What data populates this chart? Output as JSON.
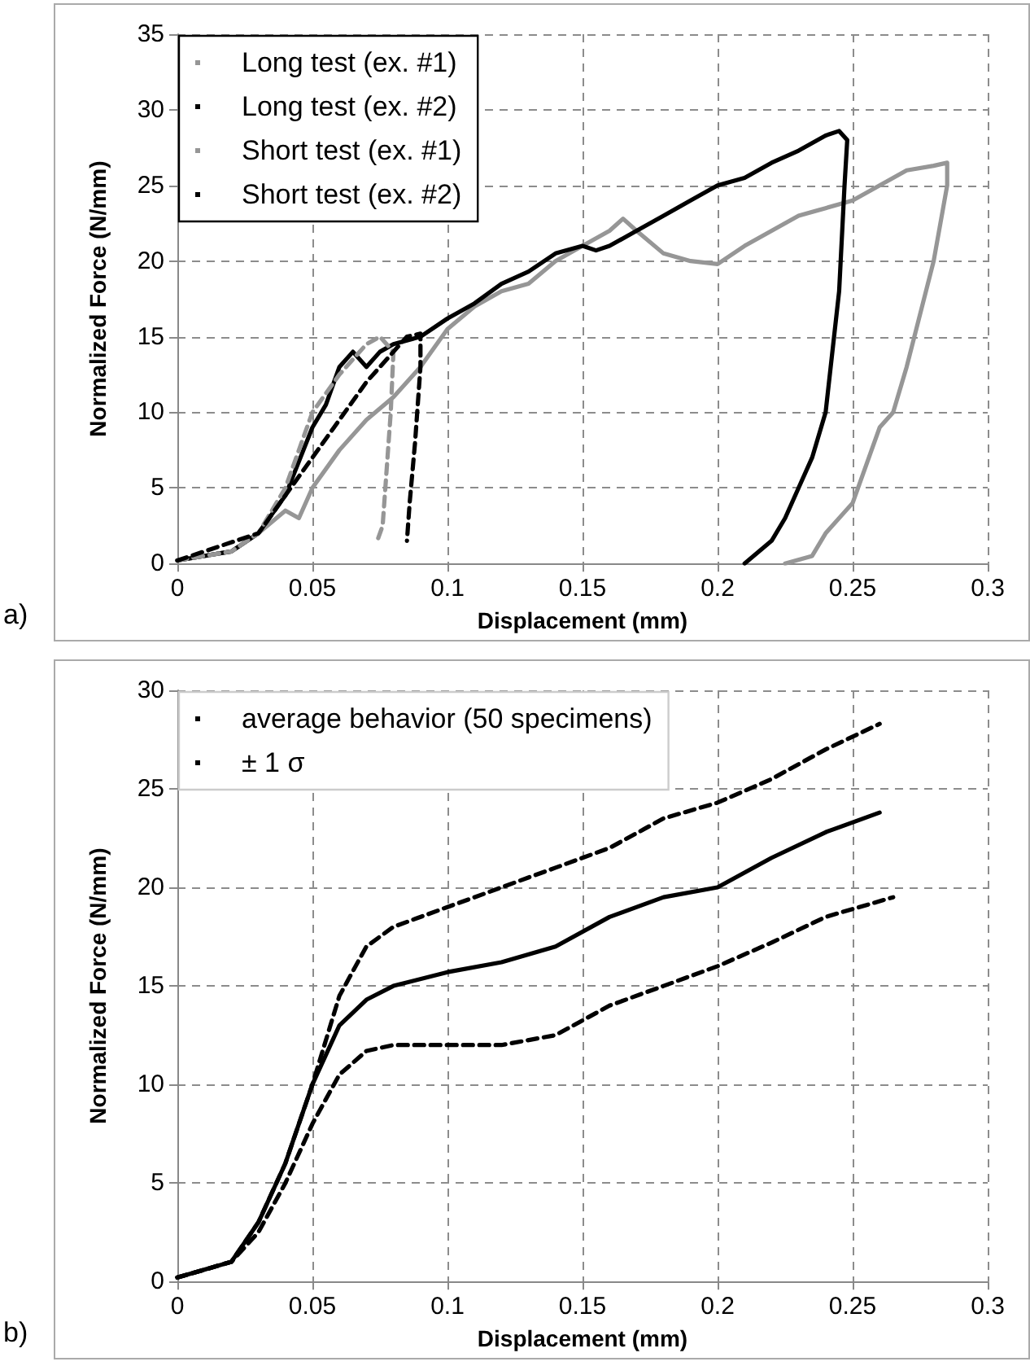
{
  "chart_data": [
    {
      "type": "line",
      "xlabel": "Displacement (mm)",
      "ylabel": "Normalized Force (N/mm)",
      "annotations": [
        "a)"
      ],
      "xlim": [
        0,
        0.3
      ],
      "xticks": [
        0,
        0.05,
        0.1,
        0.15,
        0.2,
        0.25,
        0.3
      ],
      "ylim": [
        0,
        35
      ],
      "yticks": [
        0,
        5,
        10,
        15,
        20,
        25,
        30,
        35
      ],
      "grid": true,
      "legend": "top left",
      "marker": "none",
      "series": [
        {
          "name": "Long test (ex. #1)",
          "color": "#969696",
          "line_style": "solid",
          "x": [
            0,
            0.02,
            0.03,
            0.04,
            0.045,
            0.05,
            0.06,
            0.07,
            0.08,
            0.09,
            0.1,
            0.11,
            0.12,
            0.13,
            0.14,
            0.15,
            0.16,
            0.165,
            0.17,
            0.18,
            0.19,
            0.2,
            0.21,
            0.22,
            0.23,
            0.24,
            0.25,
            0.26,
            0.27,
            0.28,
            0.285,
            0.285,
            0.28,
            0.27,
            0.265,
            0.26,
            0.25,
            0.24,
            0.235,
            0.225
          ],
          "values": [
            0.2,
            0.8,
            2,
            3.5,
            3,
            5,
            7.5,
            9.5,
            11,
            13,
            15.5,
            17,
            18,
            18.5,
            20,
            21,
            22,
            22.8,
            22,
            20.5,
            20,
            19.8,
            21,
            22,
            23,
            23.5,
            24,
            25,
            26,
            26.3,
            26.5,
            25,
            20,
            13,
            10,
            9,
            4,
            2,
            0.5,
            0
          ]
        },
        {
          "name": "Long test (ex. #2)",
          "color": "#000000",
          "line_style": "solid",
          "x": [
            0,
            0.02,
            0.03,
            0.04,
            0.05,
            0.055,
            0.06,
            0.065,
            0.07,
            0.075,
            0.08,
            0.09,
            0.1,
            0.11,
            0.12,
            0.13,
            0.14,
            0.15,
            0.155,
            0.16,
            0.17,
            0.18,
            0.19,
            0.2,
            0.21,
            0.22,
            0.23,
            0.24,
            0.245,
            0.248,
            0.247,
            0.245,
            0.24,
            0.235,
            0.23,
            0.225,
            0.22,
            0.21
          ],
          "values": [
            0.2,
            0.8,
            2,
            4.5,
            9,
            10.5,
            13,
            14,
            13,
            14,
            14.5,
            15,
            16.2,
            17.2,
            18.5,
            19.3,
            20.5,
            21,
            20.7,
            21,
            22,
            23,
            24,
            25,
            25.5,
            26.5,
            27.3,
            28.3,
            28.6,
            28,
            25,
            18,
            10,
            7,
            5,
            3,
            1.5,
            0
          ]
        },
        {
          "name": "Short test (ex. #1)",
          "color": "#969696",
          "line_style": "dashed",
          "x": [
            0,
            0.02,
            0.03,
            0.04,
            0.05,
            0.06,
            0.07,
            0.075,
            0.08,
            0.079,
            0.077,
            0.076,
            0.074
          ],
          "values": [
            0.2,
            0.8,
            2,
            5,
            10,
            12.5,
            14.5,
            15,
            14,
            10,
            5,
            2.5,
            1.5
          ]
        },
        {
          "name": "Short test (ex. #2)",
          "color": "#000000",
          "line_style": "dashed",
          "x": [
            0,
            0.03,
            0.04,
            0.05,
            0.06,
            0.07,
            0.08,
            0.085,
            0.09,
            0.09,
            0.088,
            0.086,
            0.085
          ],
          "values": [
            0.2,
            2,
            4.5,
            7,
            9.5,
            12,
            14,
            15,
            15.2,
            13,
            8,
            4,
            1.5
          ]
        }
      ]
    },
    {
      "type": "line",
      "xlabel": "Displacement (mm)",
      "ylabel": "Normalized Force (N/mm)",
      "annotations": [
        "b)"
      ],
      "xlim": [
        0,
        0.3
      ],
      "xticks": [
        0,
        0.05,
        0.1,
        0.15,
        0.2,
        0.25,
        0.3
      ],
      "ylim": [
        0,
        30
      ],
      "yticks": [
        0,
        5,
        10,
        15,
        20,
        25,
        30
      ],
      "grid": true,
      "legend": "top left",
      "marker": "none",
      "series": [
        {
          "name": "average behavior (50 specimens)",
          "color": "#000000",
          "line_style": "solid",
          "x": [
            0,
            0.02,
            0.03,
            0.04,
            0.05,
            0.06,
            0.07,
            0.08,
            0.1,
            0.12,
            0.14,
            0.16,
            0.18,
            0.2,
            0.22,
            0.24,
            0.26
          ],
          "values": [
            0.2,
            1,
            3,
            6,
            10,
            13,
            14.3,
            15,
            15.7,
            16.2,
            17,
            18.5,
            19.5,
            20,
            21.5,
            22.8,
            23.8
          ]
        },
        {
          "name": "± 1 σ",
          "color": "#000000",
          "line_style": "dashed",
          "x": [
            0,
            0.02,
            0.03,
            0.04,
            0.05,
            0.06,
            0.07,
            0.08,
            0.1,
            0.12,
            0.14,
            0.16,
            0.18,
            0.2,
            0.22,
            0.24,
            0.26
          ],
          "values": [
            0.2,
            1,
            3,
            6,
            10,
            14.5,
            17,
            18,
            19,
            20,
            21,
            22,
            23.5,
            24.3,
            25.5,
            27,
            28.3
          ]
        },
        {
          "color": "#000000",
          "line_style": "dashed",
          "x": [
            0,
            0.02,
            0.03,
            0.04,
            0.05,
            0.06,
            0.07,
            0.08,
            0.1,
            0.12,
            0.14,
            0.16,
            0.18,
            0.2,
            0.22,
            0.24,
            0.265
          ],
          "values": [
            0.2,
            1,
            2.5,
            5,
            8,
            10.5,
            11.7,
            12,
            12,
            12,
            12.5,
            14,
            15,
            16,
            17.2,
            18.5,
            19.5
          ]
        }
      ]
    }
  ]
}
